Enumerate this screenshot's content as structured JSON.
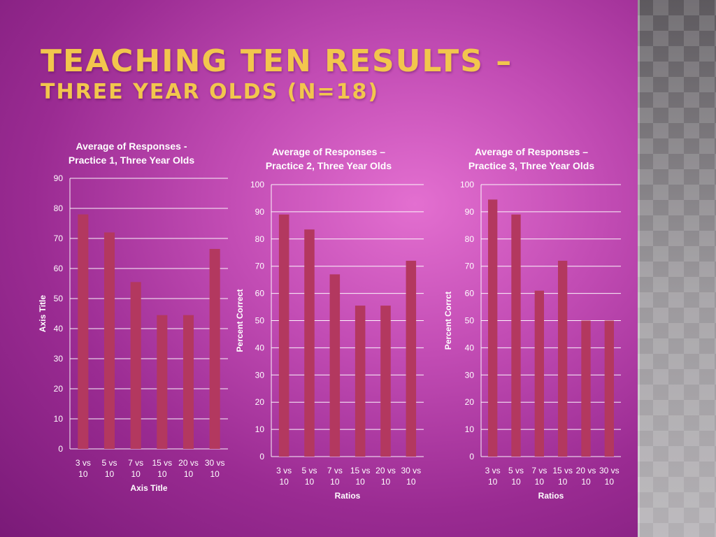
{
  "slide": {
    "title_line1": "TEACHING TEN RESULTS –",
    "title_line2": "THREE YEAR OLDS (N=18)"
  },
  "colors": {
    "bar": "#b3385f",
    "title": "#f2c64d",
    "text": "#ffffff"
  },
  "chart_data": [
    {
      "type": "bar",
      "title_lines": [
        "Average of Responses -",
        "Practice 1, Three Year Olds"
      ],
      "categories": [
        [
          "3 vs",
          "10"
        ],
        [
          "5 vs",
          "10"
        ],
        [
          "7 vs",
          "10"
        ],
        [
          "15 vs",
          "10"
        ],
        [
          "20 vs",
          "10"
        ],
        [
          "30 vs",
          "10"
        ]
      ],
      "values": [
        78,
        72,
        55.5,
        44.5,
        44.5,
        66.5
      ],
      "xlabel": "Axis Title",
      "ylabel": "Axis Title",
      "ylim": [
        0,
        90
      ],
      "yticks": [
        0,
        10,
        20,
        30,
        40,
        50,
        60,
        70,
        80,
        90
      ],
      "grid": true
    },
    {
      "type": "bar",
      "title_lines": [
        "Average of Responses –",
        "Practice 2, Three Year Olds"
      ],
      "categories": [
        [
          "3 vs",
          "10"
        ],
        [
          "5 vs",
          "10"
        ],
        [
          "7 vs",
          "10"
        ],
        [
          "15 vs",
          "10"
        ],
        [
          "20 vs",
          "10"
        ],
        [
          "30 vs",
          "10"
        ]
      ],
      "values": [
        89,
        83.5,
        67,
        55.5,
        55.5,
        72
      ],
      "xlabel": "Ratios",
      "ylabel": "Percent Correct",
      "ylim": [
        0,
        100
      ],
      "yticks": [
        0,
        10,
        20,
        30,
        40,
        50,
        60,
        70,
        80,
        90,
        100
      ],
      "grid": true
    },
    {
      "type": "bar",
      "title_lines": [
        "Average of Responses –",
        "Practice 3, Three Year Olds"
      ],
      "categories": [
        [
          "3 vs",
          "10"
        ],
        [
          "5 vs",
          "10"
        ],
        [
          "7 vs",
          "10"
        ],
        [
          "15 vs",
          "10"
        ],
        [
          "20 vs",
          "10"
        ],
        [
          "30 vs",
          "10"
        ]
      ],
      "values": [
        94.5,
        89,
        61,
        72,
        50,
        50
      ],
      "xlabel": "Ratios",
      "ylabel": "Percent Corrct",
      "ylim": [
        0,
        100
      ],
      "yticks": [
        0,
        10,
        20,
        30,
        40,
        50,
        60,
        70,
        80,
        90,
        100
      ],
      "grid": true
    }
  ]
}
